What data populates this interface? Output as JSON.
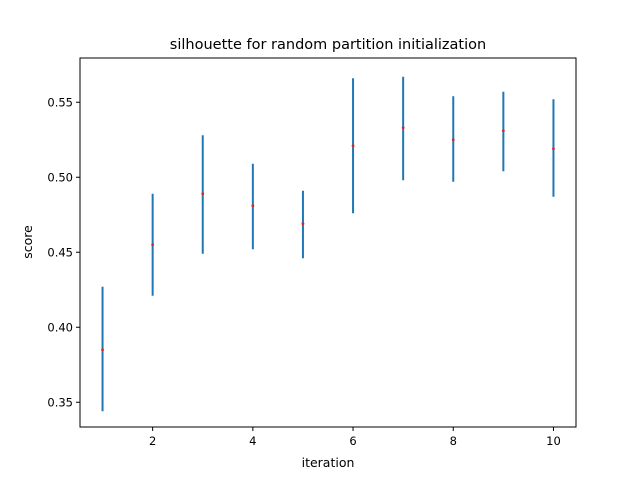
{
  "chart_data": {
    "type": "scatter",
    "title": "silhouette for random partition initialization",
    "xlabel": "iteration",
    "ylabel": "score",
    "xlim": [
      0.55,
      10.45
    ],
    "ylim": [
      0.3335,
      0.5795
    ],
    "xticks": [
      2,
      4,
      6,
      8,
      10
    ],
    "xtick_labels": [
      "2",
      "4",
      "6",
      "8",
      "10"
    ],
    "yticks": [
      0.35,
      0.4,
      0.45,
      0.5,
      0.55
    ],
    "ytick_labels": [
      "0.35",
      "0.40",
      "0.45",
      "0.50",
      "0.55"
    ],
    "grid": false,
    "series": [
      {
        "x": [
          1,
          2,
          3,
          4,
          5,
          6,
          7,
          8,
          9,
          10
        ],
        "mean": [
          0.385,
          0.455,
          0.489,
          0.481,
          0.469,
          0.521,
          0.533,
          0.525,
          0.531,
          0.519
        ],
        "lower": [
          0.344,
          0.421,
          0.449,
          0.452,
          0.446,
          0.476,
          0.498,
          0.497,
          0.504,
          0.487
        ],
        "upper": [
          0.427,
          0.489,
          0.528,
          0.509,
          0.491,
          0.566,
          0.567,
          0.554,
          0.557,
          0.552
        ]
      }
    ],
    "colors": {
      "errorbar": "#1f77b4",
      "marker": "#d62728"
    }
  }
}
